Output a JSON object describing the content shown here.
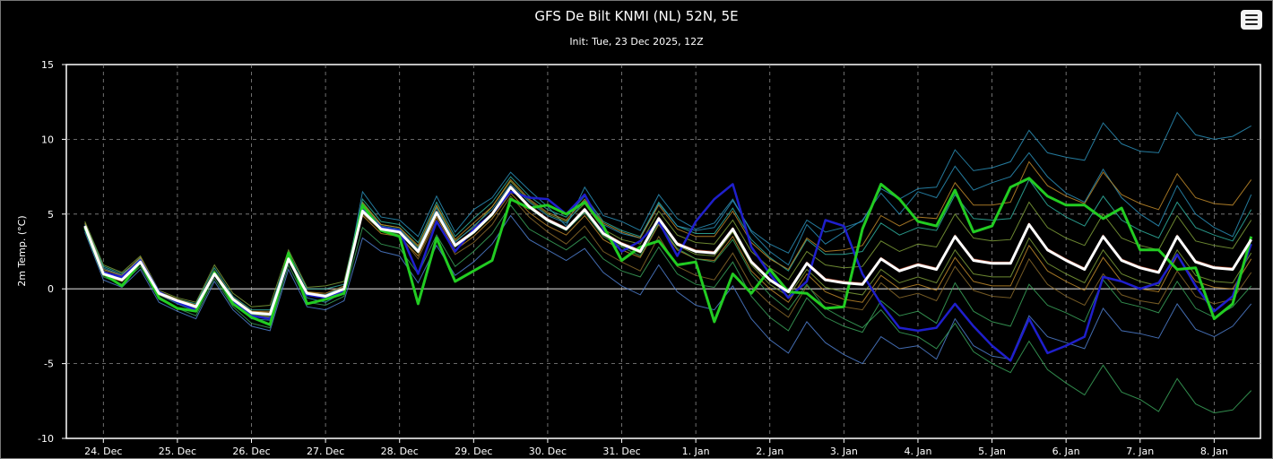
{
  "title": "GFS De Bilt KNMI (NL) 52N, 5E",
  "subtitle": "Init: Tue, 23 Dec 2025, 12Z",
  "menu_icon": "hamburger-menu-icon",
  "chart_data": {
    "type": "line",
    "ylabel": "2m Temp. (°C)",
    "ylim": [
      -10,
      15
    ],
    "yticks": [
      -10,
      -5,
      0,
      5,
      10,
      15
    ],
    "xlim_hours": [
      0,
      387
    ],
    "grid": true,
    "step_hours": 6,
    "xtick_labels": [
      "24. Dec",
      "25. Dec",
      "26. Dec",
      "27. Dec",
      "28. Dec",
      "29. Dec",
      "30. Dec",
      "31. Dec",
      "1. Jan",
      "2. Jan",
      "3. Jan",
      "4. Jan",
      "5. Jan",
      "6. Jan",
      "7. Jan",
      "8. Jan"
    ],
    "colors": {
      "mean": "#ffffff",
      "operational": "#1f1fcc",
      "control": "#22cc22",
      "members": [
        "#2a8fb8",
        "#3aa35a",
        "#7fa03a",
        "#c08a2a",
        "#b0452a",
        "#4f7fd0",
        "#2fb0a0",
        "#8a6a2a"
      ]
    },
    "series": [
      {
        "role": "mean",
        "values": [
          4.2,
          1.0,
          0.6,
          1.8,
          -0.3,
          -0.8,
          -1.2,
          1.0,
          -0.7,
          -1.6,
          -1.7,
          2.0,
          -0.3,
          -0.5,
          0.0,
          5.2,
          4.0,
          3.8,
          2.5,
          5.1,
          2.9,
          3.8,
          5.0,
          6.8,
          5.5,
          4.6,
          4.0,
          5.3,
          3.7,
          3.0,
          2.5,
          4.7,
          3.0,
          2.5,
          2.4,
          4.0,
          1.8,
          0.6,
          -0.2,
          1.7,
          0.6,
          0.4,
          0.3,
          2.0,
          1.2,
          1.6,
          1.3,
          3.5,
          1.9,
          1.7,
          1.7,
          4.3,
          2.6,
          1.9,
          1.3,
          3.5,
          1.9,
          1.4,
          1.1,
          3.5,
          1.8,
          1.4,
          1.3,
          3.3
        ]
      },
      {
        "role": "operational",
        "values": [
          4.0,
          1.1,
          0.8,
          1.9,
          -0.2,
          -0.9,
          -1.4,
          1.0,
          -0.8,
          -1.8,
          -2.0,
          2.0,
          -0.4,
          -0.6,
          -0.1,
          5.3,
          4.1,
          3.9,
          1.0,
          4.5,
          2.5,
          4.0,
          5.0,
          6.5,
          6.1,
          6.0,
          5.0,
          6.3,
          4.0,
          2.5,
          3.2,
          4.5,
          2.2,
          4.5,
          6.0,
          7.0,
          2.8,
          1.0,
          -0.6,
          0.5,
          4.6,
          4.2,
          1.0,
          -1.0,
          -2.6,
          -2.8,
          -2.6,
          -1.0,
          -2.5,
          -3.8,
          -4.8,
          -2.0,
          -4.3,
          -3.8,
          -3.2,
          0.8,
          0.5,
          0.0,
          0.4,
          2.3,
          0.2,
          -1.5,
          -0.5,
          3.0
        ]
      },
      {
        "role": "control",
        "values": [
          4.1,
          1.0,
          0.2,
          1.8,
          -0.6,
          -1.3,
          -1.5,
          1.1,
          -1.0,
          -1.9,
          -2.4,
          2.4,
          -1.0,
          -0.7,
          -0.3,
          5.6,
          3.9,
          3.5,
          -1.0,
          3.4,
          0.5,
          1.2,
          1.9,
          6.0,
          5.4,
          5.6,
          5.0,
          5.8,
          4.2,
          1.9,
          2.8,
          3.2,
          1.6,
          1.8,
          -2.2,
          1.0,
          -0.3,
          1.3,
          -0.2,
          -0.3,
          -1.3,
          -1.2,
          4.0,
          7.0,
          6.0,
          4.5,
          4.2,
          6.6,
          3.8,
          4.2,
          6.8,
          7.4,
          6.2,
          5.6,
          5.6,
          4.7,
          5.4,
          2.6,
          2.6,
          1.3,
          1.4,
          -2.0,
          -1.0,
          3.5
        ]
      }
    ],
    "members": [
      [
        4.3,
        1.4,
        0.9,
        2.1,
        -0.4,
        -1.0,
        -1.5,
        1.2,
        -0.9,
        -2.0,
        -2.1,
        2.2,
        -0.6,
        -0.9,
        -0.2,
        6.5,
        4.8,
        4.6,
        3.5,
        6.2,
        3.8,
        5.3,
        6.1,
        7.8,
        6.6,
        5.5,
        4.2,
        6.8,
        4.9,
        4.5,
        3.9,
        6.3,
        4.7,
        4.0,
        4.4,
        6.0,
        3.8,
        2.5,
        1.6,
        4.3,
        3.0,
        3.8,
        4.6,
        6.4,
        5.0,
        6.5,
        6.1,
        8.2,
        6.6,
        7.1,
        7.5,
        9.1,
        7.5,
        6.4,
        5.8,
        8.0,
        6.1,
        5.0,
        4.2,
        6.9,
        5.0,
        4.1,
        3.5,
        6.3
      ],
      [
        3.9,
        0.8,
        0.3,
        1.5,
        -0.7,
        -1.3,
        -1.8,
        0.7,
        -1.2,
        -2.3,
        -2.6,
        1.6,
        -0.9,
        -1.1,
        -0.5,
        4.1,
        3.0,
        2.7,
        1.0,
        3.6,
        1.5,
        2.5,
        3.7,
        5.6,
        4.0,
        3.3,
        2.6,
        3.5,
        2.0,
        1.2,
        0.8,
        2.8,
        1.0,
        0.3,
        0.1,
        1.8,
        -0.5,
        -1.9,
        -2.8,
        -0.6,
        -1.9,
        -2.5,
        -2.9,
        -0.8,
        -1.8,
        -1.5,
        -2.3,
        0.4,
        -1.5,
        -2.2,
        -2.5,
        0.3,
        -1.1,
        -1.6,
        -2.2,
        0.6,
        -0.9,
        -1.2,
        -1.6,
        0.5,
        -1.3,
        -1.9,
        -1.2,
        0.2
      ],
      [
        4.5,
        1.6,
        1.1,
        2.2,
        -0.1,
        -0.6,
        -0.9,
        1.6,
        -0.3,
        -1.2,
        -1.1,
        2.6,
        0.1,
        0.2,
        0.5,
        5.8,
        4.3,
        4.1,
        2.8,
        5.5,
        3.2,
        4.1,
        5.5,
        7.2,
        5.9,
        5.0,
        4.5,
        5.7,
        4.0,
        3.3,
        3.0,
        5.2,
        3.6,
        3.1,
        3.0,
        4.6,
        2.5,
        1.4,
        0.6,
        2.5,
        1.6,
        1.4,
        1.5,
        3.2,
        2.5,
        3.0,
        2.8,
        5.0,
        3.4,
        3.2,
        3.3,
        5.8,
        4.1,
        3.4,
        2.9,
        5.0,
        3.4,
        2.9,
        2.6,
        4.9,
        3.2,
        2.9,
        2.7,
        4.6
      ],
      [
        4.0,
        0.9,
        0.5,
        1.7,
        -0.2,
        -0.7,
        -1.1,
        0.9,
        -0.6,
        -1.5,
        -1.5,
        1.9,
        -0.2,
        -0.4,
        0.1,
        4.9,
        3.7,
        3.5,
        2.2,
        4.8,
        2.6,
        3.5,
        4.7,
        6.4,
        5.1,
        4.2,
        3.6,
        4.9,
        3.3,
        2.6,
        2.1,
        4.3,
        2.6,
        2.0,
        1.9,
        3.5,
        1.2,
        0.0,
        -0.9,
        1.0,
        -0.2,
        -0.7,
        -0.9,
        0.9,
        0.0,
        0.3,
        -0.1,
        2.1,
        0.5,
        0.2,
        0.2,
        2.9,
        1.2,
        0.5,
        -0.1,
        2.1,
        0.5,
        0.0,
        -0.2,
        2.2,
        0.5,
        0.1,
        0.0,
        2.0
      ],
      [
        4.2,
        1.2,
        0.8,
        1.9,
        -0.3,
        -0.8,
        -1.2,
        1.1,
        -0.7,
        -1.7,
        -1.8,
        2.1,
        -0.4,
        -0.6,
        0.0,
        5.4,
        4.1,
        3.9,
        2.6,
        5.2,
        3.0,
        3.9,
        5.1,
        6.9,
        5.6,
        4.7,
        4.1,
        5.4,
        3.8,
        3.1,
        2.6,
        4.8,
        3.1,
        2.6,
        2.5,
        4.1,
        1.9,
        0.7,
        -0.1,
        1.8,
        0.7,
        0.5,
        0.4,
        2.1,
        1.3,
        1.7,
        1.4,
        3.6,
        2.0,
        1.8,
        1.8,
        4.4,
        2.7,
        2.0,
        1.4,
        3.6,
        2.0,
        1.5,
        1.2,
        3.6,
        1.9,
        1.5,
        1.4,
        3.4
      ],
      [
        3.8,
        0.6,
        0.1,
        1.3,
        -0.9,
        -1.5,
        -2.0,
        0.5,
        -1.4,
        -2.5,
        -2.8,
        1.3,
        -1.2,
        -1.4,
        -0.8,
        3.4,
        2.5,
        2.2,
        0.4,
        2.9,
        0.9,
        1.8,
        3.0,
        4.9,
        3.3,
        2.6,
        1.9,
        2.7,
        1.1,
        0.2,
        -0.4,
        1.6,
        -0.2,
        -1.1,
        -1.4,
        0.2,
        -2.0,
        -3.4,
        -4.3,
        -2.2,
        -3.6,
        -4.4,
        -5.0,
        -3.2,
        -4.0,
        -3.8,
        -4.7,
        -2.0,
        -3.8,
        -4.5,
        -4.7,
        -1.8,
        -3.2,
        -3.6,
        -4.0,
        -1.3,
        -2.8,
        -3.0,
        -3.3,
        -1.0,
        -2.7,
        -3.2,
        -2.5,
        -1.0
      ],
      [
        4.4,
        1.5,
        1.0,
        2.0,
        -0.2,
        -0.7,
        -1.0,
        1.4,
        -0.5,
        -1.4,
        -1.4,
        2.4,
        0.0,
        0.0,
        0.3,
        6.0,
        4.5,
        4.3,
        3.1,
        5.8,
        3.5,
        4.7,
        5.8,
        7.5,
        6.2,
        5.3,
        4.8,
        6.2,
        4.5,
        3.9,
        3.5,
        5.8,
        4.2,
        3.7,
        3.7,
        5.4,
        3.3,
        2.1,
        1.2,
        3.3,
        2.3,
        2.3,
        2.5,
        4.4,
        3.6,
        4.1,
        3.9,
        6.3,
        4.7,
        4.6,
        4.7,
        7.3,
        5.6,
        4.8,
        4.2,
        6.2,
        4.6,
        3.9,
        3.4,
        5.8,
        4.1,
        3.6,
        3.2,
        5.3
      ],
      [
        4.1,
        1.0,
        0.6,
        1.8,
        -0.4,
        -0.9,
        -1.3,
        1.0,
        -0.8,
        -1.7,
        -1.9,
        2.0,
        -0.4,
        -0.6,
        -0.1,
        5.0,
        3.9,
        3.6,
        2.0,
        4.6,
        2.3,
        3.1,
        4.3,
        6.2,
        4.8,
        3.8,
        3.0,
        4.2,
        2.5,
        1.8,
        1.2,
        3.5,
        1.5,
        0.9,
        0.6,
        2.4,
        0.2,
        -1.0,
        -1.9,
        0.2,
        -0.9,
        -1.2,
        -1.4,
        0.4,
        -0.6,
        -0.3,
        -0.8,
        1.5,
        -0.1,
        -0.5,
        -0.6,
        2.0,
        0.3,
        -0.5,
        -1.1,
        1.0,
        -0.4,
        -0.8,
        -1.0,
        1.2,
        -0.5,
        -1.0,
        -0.7,
        1.1
      ],
      [
        4.3,
        1.3,
        0.9,
        2.0,
        -0.3,
        -0.8,
        -1.2,
        1.2,
        -0.6,
        -1.6,
        -1.6,
        2.2,
        -0.3,
        -0.4,
        0.2,
        5.6,
        4.2,
        4.0,
        2.7,
        5.4,
        3.1,
        4.2,
        5.3,
        7.0,
        5.8,
        4.9,
        4.4,
        5.9,
        4.3,
        3.7,
        3.4,
        5.7,
        4.2,
        3.9,
        4.1,
        5.9,
        3.9,
        3.0,
        2.4,
        4.6,
        3.8,
        4.1,
        4.5,
        6.7,
        6.0,
        6.7,
        6.8,
        9.3,
        7.9,
        8.1,
        8.5,
        10.6,
        9.1,
        8.8,
        8.6,
        11.1,
        9.7,
        9.2,
        9.1,
        11.8,
        10.3,
        10.0,
        10.2,
        10.9
      ],
      [
        4.0,
        1.1,
        0.7,
        1.8,
        -0.2,
        -0.8,
        -1.2,
        1.0,
        -0.7,
        -1.7,
        -1.8,
        2.0,
        -0.3,
        -0.5,
        0.0,
        5.1,
        3.9,
        3.7,
        2.4,
        5.0,
        2.8,
        3.7,
        4.9,
        6.7,
        5.4,
        4.5,
        3.9,
        5.1,
        3.5,
        2.8,
        2.2,
        4.4,
        2.7,
        2.0,
        1.8,
        3.3,
        1.0,
        -0.4,
        -1.4,
        0.3,
        -1.3,
        -2.0,
        -2.6,
        -1.4,
        -2.9,
        -3.2,
        -4.0,
        -2.3,
        -4.2,
        -5.0,
        -5.6,
        -3.5,
        -5.4,
        -6.3,
        -7.1,
        -5.1,
        -6.9,
        -7.4,
        -8.2,
        -6.0,
        -7.7,
        -8.3,
        -8.1,
        -6.8
      ],
      [
        4.2,
        1.2,
        0.7,
        1.9,
        -0.3,
        -0.9,
        -1.3,
        1.0,
        -0.8,
        -1.8,
        -1.9,
        2.0,
        -0.4,
        -0.6,
        -0.1,
        5.3,
        4.0,
        3.8,
        2.4,
        5.0,
        2.8,
        3.7,
        4.9,
        6.7,
        5.5,
        4.6,
        4.0,
        5.2,
        3.6,
        2.9,
        2.4,
        4.6,
        2.9,
        2.3,
        2.2,
        3.8,
        1.6,
        0.3,
        -0.5,
        1.3,
        0.1,
        -0.2,
        -0.4,
        1.3,
        0.4,
        0.8,
        0.4,
        2.6,
        1.0,
        0.8,
        0.8,
        3.4,
        1.7,
        1.0,
        0.4,
        2.6,
        1.0,
        0.5,
        0.2,
        2.6,
        0.9,
        0.5,
        0.4,
        2.4
      ],
      [
        4.4,
        1.3,
        0.9,
        2.1,
        -0.2,
        -0.7,
        -1.1,
        1.2,
        -0.6,
        -1.5,
        -1.6,
        2.2,
        -0.2,
        -0.3,
        0.2,
        5.7,
        4.3,
        4.1,
        2.9,
        5.6,
        3.3,
        4.4,
        5.5,
        7.3,
        6.0,
        5.1,
        4.6,
        6.0,
        4.4,
        3.8,
        3.4,
        5.6,
        4.0,
        3.5,
        3.5,
        5.2,
        3.1,
        2.0,
        1.3,
        3.4,
        2.5,
        2.6,
        2.9,
        4.9,
        4.2,
        4.8,
        4.7,
        7.1,
        5.6,
        5.6,
        5.8,
        8.5,
        6.9,
        6.2,
        5.7,
        7.8,
        6.3,
        5.7,
        5.3,
        7.7,
        6.1,
        5.7,
        5.6,
        7.3
      ]
    ]
  }
}
